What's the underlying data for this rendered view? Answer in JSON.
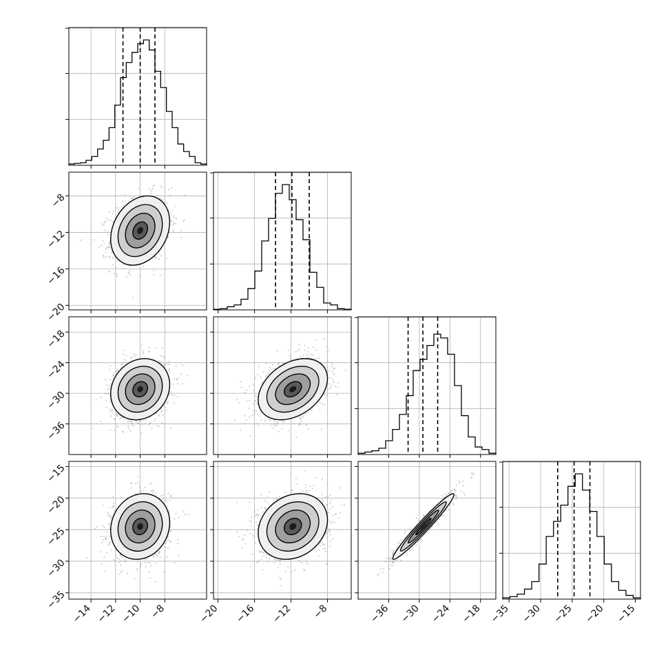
{
  "chart_data": {
    "type": "scatter",
    "kind": "corner-plot",
    "grid": true,
    "parameters": [
      {
        "label": "",
        "range": [
          -15.8,
          -4.6
        ],
        "ticks": [
          -14,
          -12,
          -10,
          -8
        ],
        "quantiles": [
          -11.4,
          -10.0,
          -8.8
        ],
        "mean": -10.0,
        "sd": 1.2,
        "histogram": [
          0.01,
          0.015,
          0.02,
          0.04,
          0.07,
          0.13,
          0.2,
          0.3,
          0.48,
          0.7,
          0.82,
          0.9,
          0.97,
          1.0,
          0.92,
          0.75,
          0.62,
          0.43,
          0.3,
          0.17,
          0.11,
          0.07,
          0.02,
          0.01
        ]
      },
      {
        "label": "",
        "range": [
          -20.5,
          -5.4
        ],
        "ticks": [
          -20,
          -16,
          -12,
          -8
        ],
        "quantiles": [
          -13.7,
          -11.9,
          -10.0
        ],
        "mean": -11.8,
        "sd": 1.9,
        "histogram": [
          0.005,
          0.01,
          0.025,
          0.04,
          0.085,
          0.17,
          0.31,
          0.55,
          0.73,
          0.93,
          1.0,
          0.88,
          0.72,
          0.56,
          0.3,
          0.18,
          0.055,
          0.04,
          0.01,
          0.005
        ]
      },
      {
        "label": "",
        "range": [
          -42.0,
          -15.0
        ],
        "ticks": [
          -36,
          -30,
          -24,
          -18
        ],
        "quantiles": [
          -32.2,
          -29.3,
          -26.4
        ],
        "mean": -29.2,
        "sd": 3.0,
        "histogram": [
          0.01,
          0.02,
          0.03,
          0.05,
          0.11,
          0.2,
          0.32,
          0.47,
          0.67,
          0.76,
          0.87,
          0.96,
          0.93,
          0.8,
          0.55,
          0.31,
          0.14,
          0.06,
          0.04,
          0.01
        ]
      },
      {
        "label": "",
        "range": [
          -36.0,
          -14.2
        ],
        "ticks": [
          -35,
          -30,
          -25,
          -20,
          -15
        ],
        "ytick_labels": [
          "-15",
          "-20",
          "-25",
          "-30",
          "-35"
        ],
        "quantiles": [
          -27.3,
          -24.7,
          -22.2
        ],
        "mean": -24.5,
        "sd": 2.6,
        "histogram": [
          0.01,
          0.02,
          0.04,
          0.08,
          0.14,
          0.28,
          0.5,
          0.62,
          0.75,
          0.9,
          1.0,
          0.87,
          0.7,
          0.5,
          0.28,
          0.14,
          0.07,
          0.03,
          0.01
        ]
      }
    ],
    "correlations": [
      [
        1,
        0.25,
        0.15,
        0.12
      ],
      [
        0.25,
        1,
        0.35,
        0.2
      ],
      [
        0.15,
        0.35,
        1,
        0.97
      ],
      [
        0.12,
        0.2,
        0.97,
        1
      ]
    ],
    "contour_levels_sigma": [
      0.5,
      1.0,
      1.5,
      2.0
    ],
    "colors": {
      "line": "#000000",
      "grid": "#b0b0b0",
      "points": "#9a9a9a"
    }
  }
}
